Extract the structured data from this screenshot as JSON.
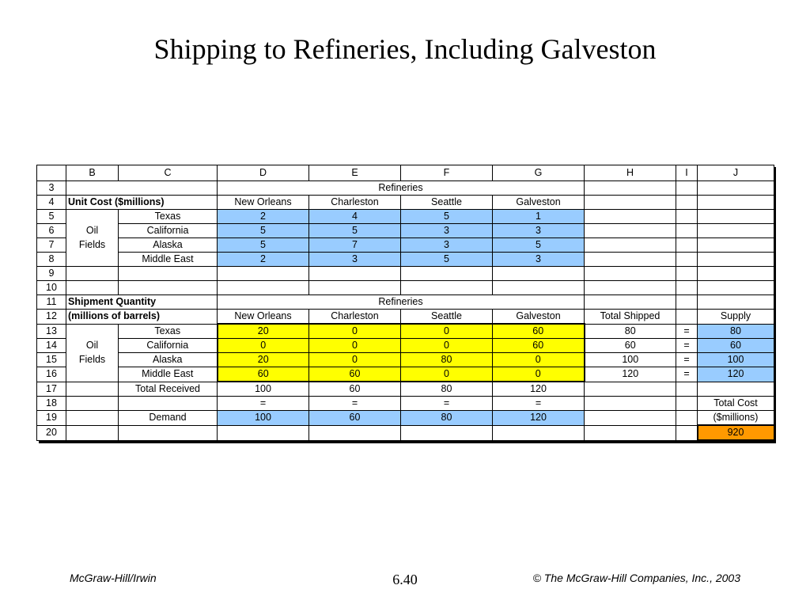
{
  "slide": {
    "title": "Shipping to Refineries, Including Galveston",
    "footer_left": "McGraw-Hill/Irwin",
    "footer_center": "6.40",
    "footer_right": "© The McGraw-Hill Companies, Inc., 2003"
  },
  "sheet": {
    "columns": [
      "B",
      "C",
      "D",
      "E",
      "F",
      "G",
      "H",
      "I",
      "J"
    ],
    "row_numbers": [
      "3",
      "4",
      "5",
      "6",
      "7",
      "8",
      "9",
      "10",
      "11",
      "12",
      "13",
      "14",
      "15",
      "16",
      "17",
      "18",
      "19",
      "20"
    ],
    "refineries_label": "Refineries",
    "unit_cost_label": "Unit Cost ($millions)",
    "shipment_quantity_label": "Shipment Quantity",
    "millions_of_barrels_label": "(millions of barrels)",
    "oil_label": "Oil",
    "fields_label": "Fields",
    "destinations": [
      "New Orleans",
      "Charleston",
      "Seattle",
      "Galveston"
    ],
    "sources": [
      "Texas",
      "California",
      "Alaska",
      "Middle East"
    ],
    "unit_costs": [
      [
        "2",
        "4",
        "5",
        "1"
      ],
      [
        "5",
        "5",
        "3",
        "3"
      ],
      [
        "5",
        "7",
        "3",
        "5"
      ],
      [
        "2",
        "3",
        "5",
        "3"
      ]
    ],
    "total_shipped_label": "Total Shipped",
    "supply_label": "Supply",
    "shipments": [
      [
        "20",
        "0",
        "0",
        "60"
      ],
      [
        "0",
        "0",
        "0",
        "60"
      ],
      [
        "20",
        "0",
        "80",
        "0"
      ],
      [
        "60",
        "60",
        "0",
        "0"
      ]
    ],
    "total_shipped": [
      "80",
      "60",
      "100",
      "120"
    ],
    "equals": "=",
    "supply": [
      "80",
      "60",
      "100",
      "120"
    ],
    "total_received_label": "Total Received",
    "total_received": [
      "100",
      "60",
      "80",
      "120"
    ],
    "demand_label": "Demand",
    "demand": [
      "100",
      "60",
      "80",
      "120"
    ],
    "total_cost_label": "Total Cost",
    "total_cost_units": "($millions)",
    "total_cost_value": "920",
    "colors": {
      "input_blue": "#99ccff",
      "changing_yellow": "#ffff00",
      "target_orange": "#ff9900"
    }
  }
}
